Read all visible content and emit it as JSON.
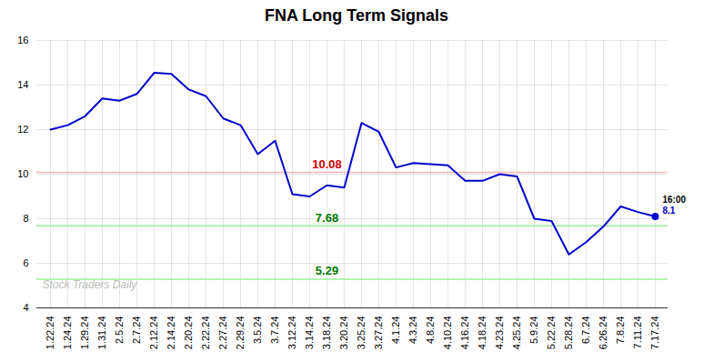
{
  "chart_data": {
    "type": "line",
    "title": "FNA Long Term Signals",
    "categories": [
      "1.22.24",
      "1.24.24",
      "1.29.24",
      "1.31.24",
      "2.5.24",
      "2.7.24",
      "2.12.24",
      "2.14.24",
      "2.20.24",
      "2.22.24",
      "2.27.24",
      "2.29.24",
      "3.5.24",
      "3.7.24",
      "3.12.24",
      "3.14.24",
      "3.18.24",
      "3.20.24",
      "3.25.24",
      "3.27.24",
      "4.1.24",
      "4.3.24",
      "4.8.24",
      "4.10.24",
      "4.16.24",
      "4.18.24",
      "4.23.24",
      "4.25.24",
      "5.9.24",
      "5.22.24",
      "5.28.24",
      "6.7.24",
      "6.26.24",
      "7.8.24",
      "7.11.24",
      "7.17.24"
    ],
    "values": [
      12.0,
      12.2,
      12.6,
      13.4,
      13.3,
      13.6,
      14.55,
      14.5,
      13.8,
      13.5,
      12.5,
      12.2,
      10.9,
      11.5,
      9.1,
      9.0,
      9.5,
      9.4,
      12.3,
      11.9,
      10.3,
      10.5,
      10.45,
      10.4,
      9.7,
      9.7,
      10.0,
      9.9,
      8.0,
      7.9,
      6.4,
      6.95,
      7.65,
      8.55,
      8.3,
      8.1
    ],
    "color": "#0000cc",
    "ylim": [
      4,
      16
    ],
    "yticks": [
      4,
      6,
      8,
      10,
      12,
      14,
      16
    ],
    "grid": true,
    "reference_lines": [
      {
        "value": 10.08,
        "label": "10.08",
        "color": "#ffb3b3",
        "label_color": "#cc0000"
      },
      {
        "value": 7.68,
        "label": "7.68",
        "color": "#99ee99",
        "label_color": "#007700"
      },
      {
        "value": 5.29,
        "label": "5.29",
        "color": "#99ee99",
        "label_color": "#007700"
      }
    ],
    "last_point_color": "#0000cc",
    "annotations": [
      {
        "text": "16:00",
        "color": "#000000"
      },
      {
        "text": "8.1",
        "color": "#0000cc"
      }
    ],
    "watermark": {
      "text": "Stock Traders Daily",
      "color": "#bbbbbb"
    }
  }
}
